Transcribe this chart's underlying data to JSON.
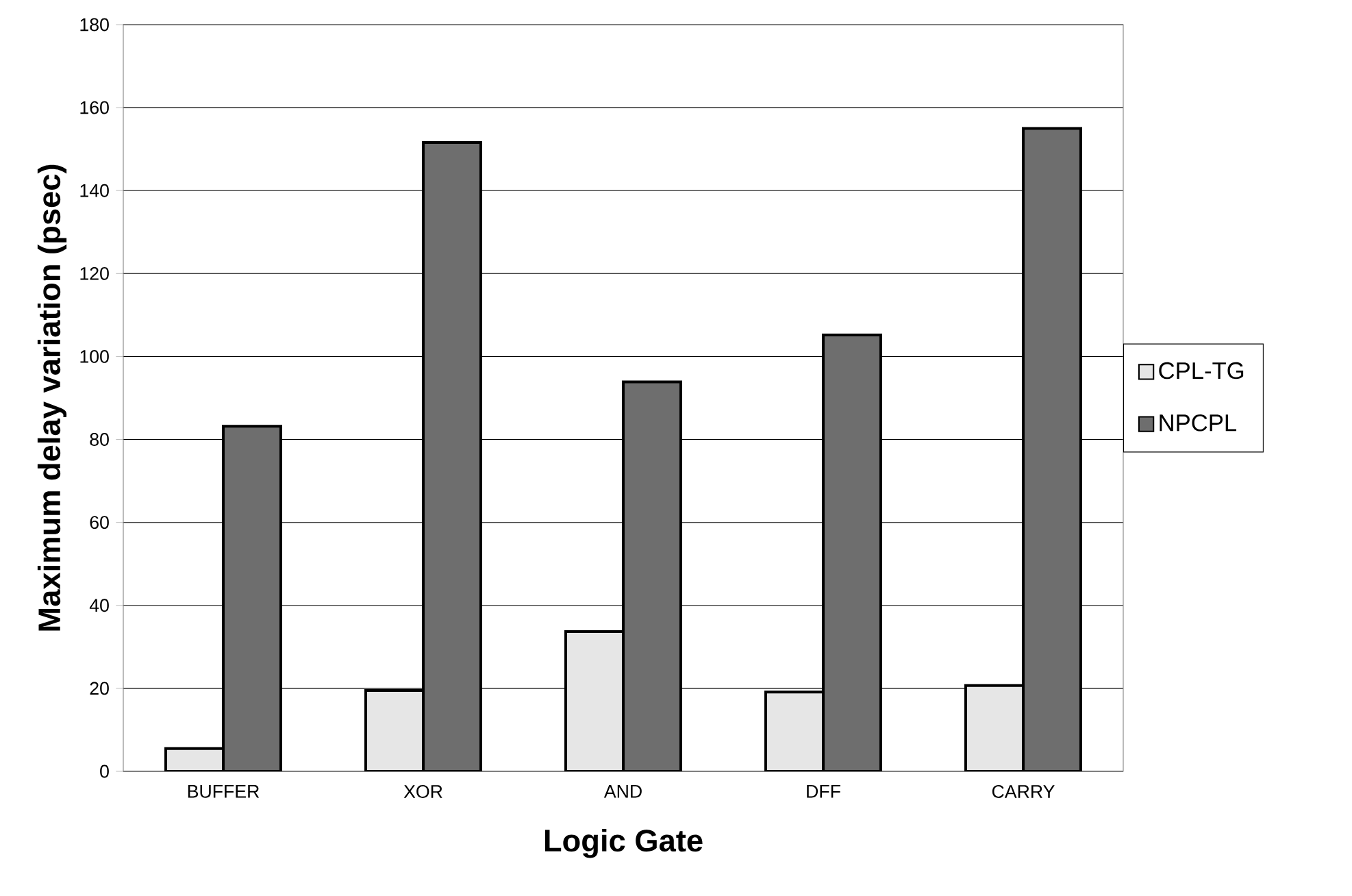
{
  "chart_data": {
    "type": "bar",
    "xlabel": "Logic Gate",
    "ylabel": "Maximum delay variation (psec)",
    "categories": [
      "BUFFER",
      "XOR",
      "AND",
      "DFF",
      "CARRY"
    ],
    "series": [
      {
        "name": "CPL-TG",
        "color": "#e6e6e6",
        "values": [
          5.5,
          19.5,
          33.7,
          19.1,
          20.7
        ]
      },
      {
        "name": "NPCPL",
        "color": "#6e6e6e",
        "values": [
          83.2,
          151.6,
          93.9,
          105.2,
          155
        ]
      }
    ],
    "ylim": [
      0,
      180
    ],
    "yticks": [
      0,
      20,
      40,
      60,
      80,
      100,
      120,
      140,
      160,
      180
    ],
    "grid": "y",
    "legend": "right"
  }
}
